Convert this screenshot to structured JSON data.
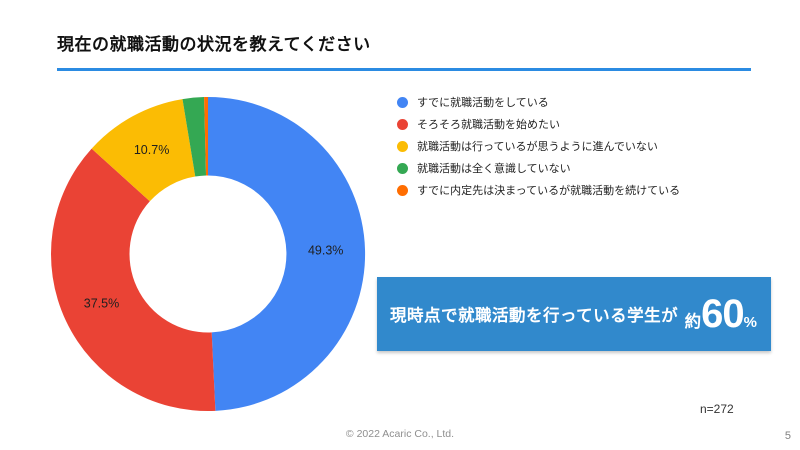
{
  "slide": {
    "title": "現在の就職活動の状況を教えてください",
    "accent_color": "#2b8be2",
    "footer_copyright": "© 2022 Acaric Co., Ltd.",
    "page_number": "5",
    "sample_size": "n=272"
  },
  "highlight": {
    "text": "現時点で就職活動を行っている学生が",
    "approx_prefix": "約",
    "value": "60",
    "unit": "%",
    "bg_color": "#3189cc",
    "text_color": "#ffffff"
  },
  "chart_data": {
    "type": "pie",
    "subtype": "donut",
    "hole_ratio": 0.5,
    "start_angle_deg": 0,
    "direction": "clockwise",
    "legend_position": "right",
    "grid": false,
    "min_label_pct": 5,
    "label_format": "percent_1dp",
    "label_color": "#1f1f1f",
    "categories": [
      "すでに就職活動をしている",
      "そろそろ就職活動を始めたい",
      "就職活動は行っているが思うように進んでいない",
      "就職活動は全く意識していない",
      "すでに内定先は決まっているが就職活動を続けている"
    ],
    "series": [
      {
        "label": "すでに就職活動をしている",
        "value": 49.3,
        "color": "#4285F4"
      },
      {
        "label": "そろそろ就職活動を始めたい",
        "value": 37.5,
        "color": "#EA4335"
      },
      {
        "label": "就職活動は行っているが思うように進んでいない",
        "value": 10.7,
        "color": "#FBBC04"
      },
      {
        "label": "就職活動は全く意識していない",
        "value": 2.2,
        "color": "#34A853"
      },
      {
        "label": "すでに内定先は決まっているが就職活動を続けている",
        "value": 0.4,
        "color": "#FF6D01"
      }
    ],
    "visible_value_labels": [
      "49.3%",
      "37.5%",
      "10.7%"
    ]
  }
}
